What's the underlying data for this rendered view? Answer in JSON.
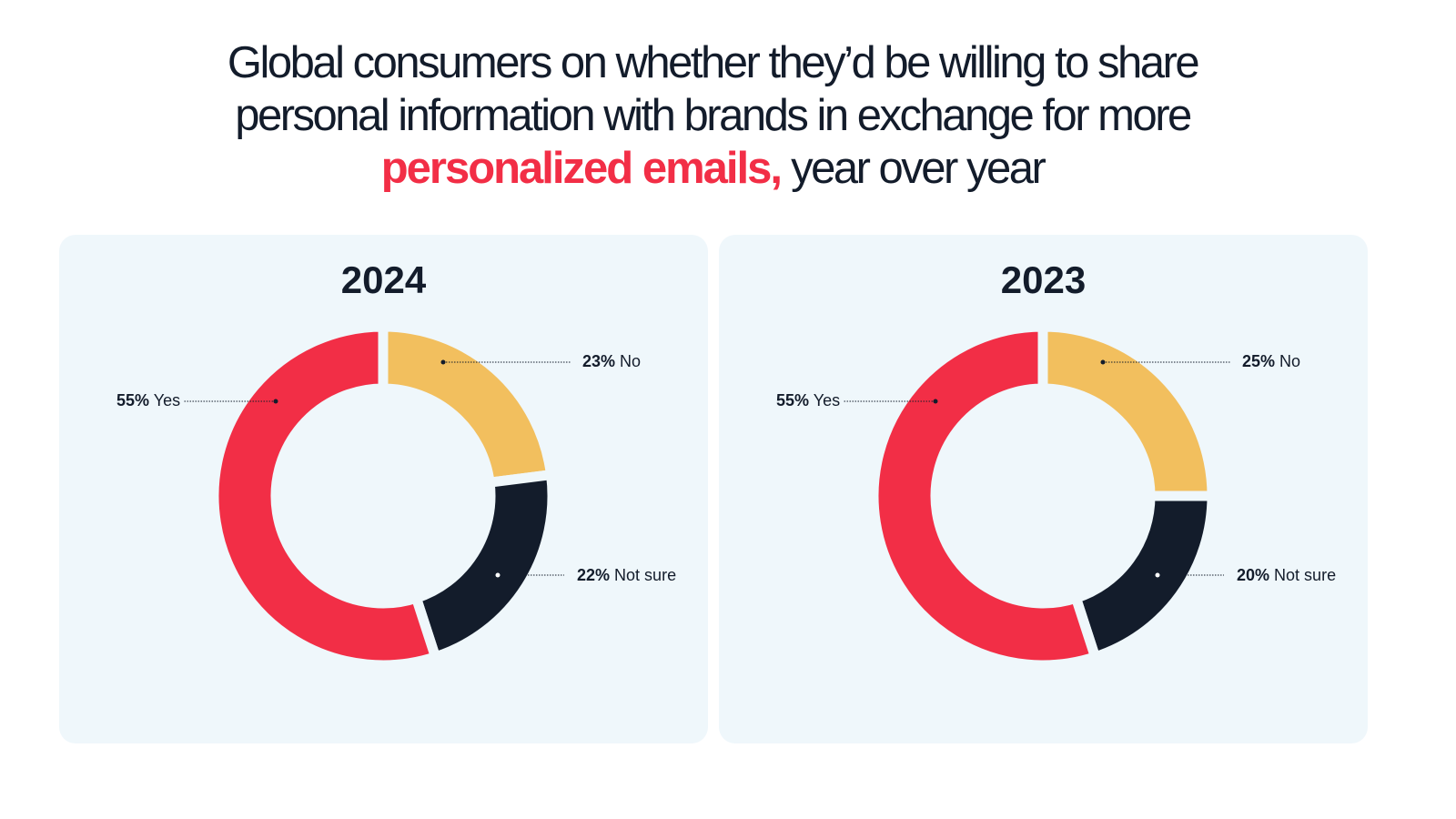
{
  "title": {
    "line1": "Global consumers on whether they’d be willing to  share",
    "line2": "personal information with brands in exchange for more",
    "highlight": "personalized emails,",
    "line3_rest": " year over year"
  },
  "colors": {
    "yes": "#f22e46",
    "no": "#f2bf5e",
    "not_sure": "#131c2b",
    "panel": "#eff7fb"
  },
  "chart_data": [
    {
      "type": "pie",
      "title": "2024",
      "categories": [
        "No",
        "Not sure",
        "Yes"
      ],
      "values": [
        23,
        22,
        55
      ],
      "labels": [
        {
          "pct": "23%",
          "name": "No"
        },
        {
          "pct": "22%",
          "name": "Not sure"
        },
        {
          "pct": "55%",
          "name": "Yes"
        }
      ]
    },
    {
      "type": "pie",
      "title": "2023",
      "categories": [
        "No",
        "Not sure",
        "Yes"
      ],
      "values": [
        25,
        20,
        55
      ],
      "labels": [
        {
          "pct": "25%",
          "name": "No"
        },
        {
          "pct": "20%",
          "name": "Not sure"
        },
        {
          "pct": "55%",
          "name": "Yes"
        }
      ]
    }
  ]
}
